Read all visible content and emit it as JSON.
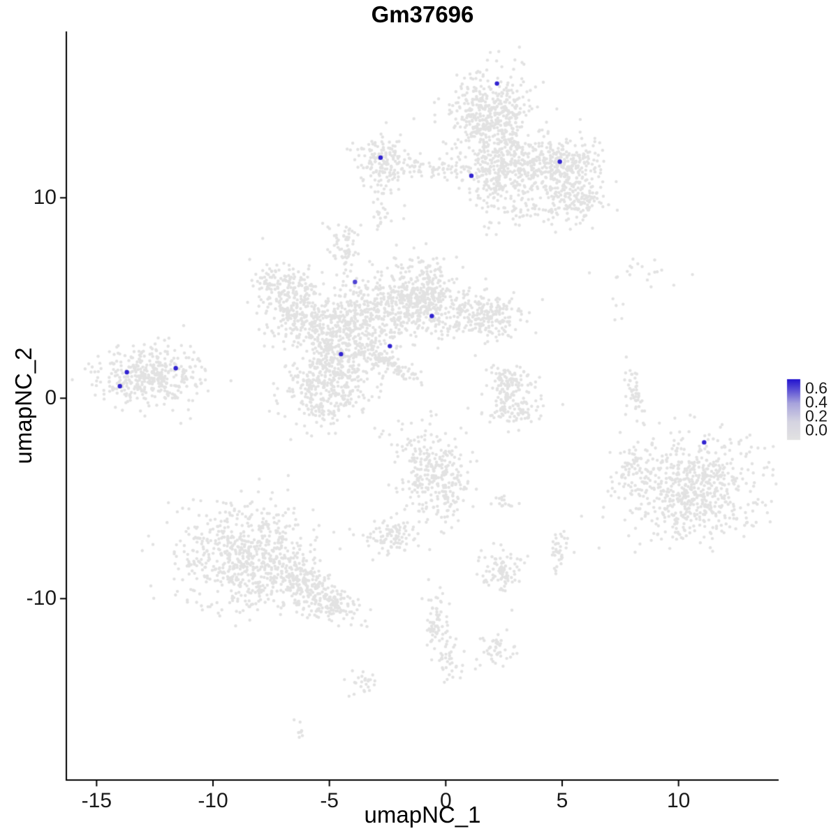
{
  "chart_data": {
    "type": "scatter",
    "title": "Gm37696",
    "xlabel": "umapNC_1",
    "ylabel": "umapNC_2",
    "xlim": [
      -16.3,
      14.3
    ],
    "ylim": [
      -19.05,
      18.3
    ],
    "x_ticks": [
      -15,
      -10,
      -5,
      0,
      5,
      10
    ],
    "x_tick_labels": [
      "-15",
      "-10",
      "-5",
      "0",
      "5",
      "10"
    ],
    "y_ticks": [
      -10,
      0,
      10
    ],
    "y_tick_labels": [
      "-10",
      "0",
      "10"
    ],
    "grid": "off",
    "background": "#FFFFFF",
    "point_color_low": "#E2E2E2",
    "point_color_high": "#2213CF",
    "legend": {
      "position": "right",
      "ticks": [
        "0.6",
        "0.4",
        "0.2",
        "0.0"
      ],
      "min": 0.0,
      "max": 0.65
    },
    "clusters": [
      {
        "cx": 1.95,
        "cy": 14.0,
        "sdx": 0.85,
        "sdy": 1.15,
        "n": 500
      },
      {
        "cx": 2.6,
        "cy": 11.4,
        "sdx": 0.95,
        "sdy": 0.8,
        "n": 260
      },
      {
        "cx": 4.9,
        "cy": 11.6,
        "sdx": 0.9,
        "sdy": 0.7,
        "n": 300
      },
      {
        "cx": 5.6,
        "cy": 9.9,
        "sdx": 0.7,
        "sdy": 0.6,
        "n": 150
      },
      {
        "cx": -2.7,
        "cy": 11.9,
        "sdx": 0.55,
        "sdy": 0.75,
        "n": 150
      },
      {
        "cx": -0.9,
        "cy": 11.5,
        "sdx": 1.2,
        "sdy": 0.25,
        "n": 70
      },
      {
        "cx": 1.8,
        "cy": 9.9,
        "sdx": 0.35,
        "sdy": 0.8,
        "n": 40
      },
      {
        "cx": 3.6,
        "cy": 9.4,
        "sdx": 0.5,
        "sdy": 0.5,
        "n": 35
      },
      {
        "cx": -2.8,
        "cy": 9.2,
        "sdx": 0.2,
        "sdy": 0.5,
        "n": 20
      },
      {
        "cx": -4.4,
        "cy": 7.8,
        "sdx": 0.35,
        "sdy": 0.5,
        "n": 50
      },
      {
        "cx": -4.2,
        "cy": 6.5,
        "sdx": 0.15,
        "sdy": 0.4,
        "n": 12
      },
      {
        "cx": -6.8,
        "cy": 5.3,
        "sdx": 0.8,
        "sdy": 0.8,
        "n": 200
      },
      {
        "cx": -6.3,
        "cy": 4.0,
        "sdx": 0.6,
        "sdy": 0.6,
        "n": 120
      },
      {
        "cx": -4.3,
        "cy": 3.0,
        "sdx": 1.0,
        "sdy": 1.2,
        "n": 500
      },
      {
        "cx": -2.3,
        "cy": 4.6,
        "sdx": 0.9,
        "sdy": 0.9,
        "n": 260
      },
      {
        "cx": -0.9,
        "cy": 5.3,
        "sdx": 0.7,
        "sdy": 0.9,
        "n": 260
      },
      {
        "cx": 0.9,
        "cy": 4.2,
        "sdx": 1.0,
        "sdy": 0.6,
        "n": 200
      },
      {
        "cx": 2.2,
        "cy": 3.9,
        "sdx": 0.5,
        "sdy": 0.5,
        "n": 80
      },
      {
        "cx": -5.3,
        "cy": 0.6,
        "sdx": 0.9,
        "sdy": 1.0,
        "n": 350
      },
      {
        "cx": -2.35,
        "cy": 1.7,
        "sdx": 0.85,
        "sdy": 0.18,
        "n": 80,
        "rot": -36
      },
      {
        "cx": -12.65,
        "cy": 1.1,
        "sdx": 1.05,
        "sdy": 0.7,
        "n": 400
      },
      {
        "cx": 2.9,
        "cy": 0.9,
        "sdx": 0.55,
        "sdy": 0.45,
        "n": 80
      },
      {
        "cx": 3.1,
        "cy": -0.7,
        "sdx": 0.6,
        "sdy": 0.4,
        "n": 70
      },
      {
        "cx": 2.5,
        "cy": 0.1,
        "sdx": 0.25,
        "sdy": 0.6,
        "n": 40
      },
      {
        "cx": 8.1,
        "cy": 0.3,
        "sdx": 0.18,
        "sdy": 0.8,
        "n": 45,
        "rot": 12
      },
      {
        "cx": 8.6,
        "cy": 6.3,
        "sdx": 1.3,
        "sdy": 0.5,
        "n": 18
      },
      {
        "cx": 7.3,
        "cy": 4.5,
        "sdx": 0.2,
        "sdy": 0.6,
        "n": 6
      },
      {
        "cx": 10.6,
        "cy": -4.5,
        "sdx": 1.5,
        "sdy": 1.3,
        "n": 650
      },
      {
        "cx": 8.0,
        "cy": -3.8,
        "sdx": 0.3,
        "sdy": 0.7,
        "n": 50
      },
      {
        "cx": -0.45,
        "cy": -3.9,
        "sdx": 0.75,
        "sdy": 1.1,
        "n": 300
      },
      {
        "cx": -2.4,
        "cy": -6.9,
        "sdx": 0.5,
        "sdy": 0.5,
        "n": 90
      },
      {
        "cx": 2.6,
        "cy": -5.2,
        "sdx": 0.25,
        "sdy": 0.2,
        "n": 15
      },
      {
        "cx": -8.4,
        "cy": -8.0,
        "sdx": 1.5,
        "sdy": 1.35,
        "n": 700
      },
      {
        "cx": -5.8,
        "cy": -9.6,
        "sdx": 1.0,
        "sdy": 0.5,
        "n": 220,
        "rot": -35
      },
      {
        "cx": -4.6,
        "cy": -10.3,
        "sdx": 0.4,
        "sdy": 0.35,
        "n": 50
      },
      {
        "cx": 2.4,
        "cy": -8.6,
        "sdx": 0.55,
        "sdy": 0.6,
        "n": 90
      },
      {
        "cx": 4.9,
        "cy": -7.6,
        "sdx": 0.3,
        "sdy": 0.5,
        "n": 35
      },
      {
        "cx": -0.4,
        "cy": -11.2,
        "sdx": 0.25,
        "sdy": 0.75,
        "n": 65
      },
      {
        "cx": 0.1,
        "cy": -13.0,
        "sdx": 0.3,
        "sdy": 0.5,
        "n": 35
      },
      {
        "cx": 2.3,
        "cy": -12.6,
        "sdx": 0.4,
        "sdy": 0.4,
        "n": 45
      },
      {
        "cx": -3.65,
        "cy": -14.2,
        "sdx": 0.35,
        "sdy": 0.35,
        "n": 25
      },
      {
        "cx": -6.2,
        "cy": -16.6,
        "sdx": 0.2,
        "sdy": 0.25,
        "n": 8
      },
      {
        "cx": -1.9,
        "cy": -1.6,
        "sdx": 0.7,
        "sdy": 0.5,
        "n": 12
      }
    ],
    "highlighted_points": [
      {
        "x": 2.2,
        "y": 15.7,
        "value": 0.6
      },
      {
        "x": -2.8,
        "y": 12.0,
        "value": 0.6
      },
      {
        "x": 1.1,
        "y": 11.1,
        "value": 0.6
      },
      {
        "x": 4.9,
        "y": 11.8,
        "value": 0.6
      },
      {
        "x": -3.9,
        "y": 5.8,
        "value": 0.5
      },
      {
        "x": -0.6,
        "y": 4.1,
        "value": 0.6
      },
      {
        "x": -2.4,
        "y": 2.6,
        "value": 0.6
      },
      {
        "x": -4.5,
        "y": 2.2,
        "value": 0.6
      },
      {
        "x": -13.7,
        "y": 1.3,
        "value": 0.6
      },
      {
        "x": -14.0,
        "y": 0.6,
        "value": 0.6
      },
      {
        "x": -11.6,
        "y": 1.5,
        "value": 0.6
      },
      {
        "x": 11.1,
        "y": -2.2,
        "value": 0.6
      }
    ]
  }
}
